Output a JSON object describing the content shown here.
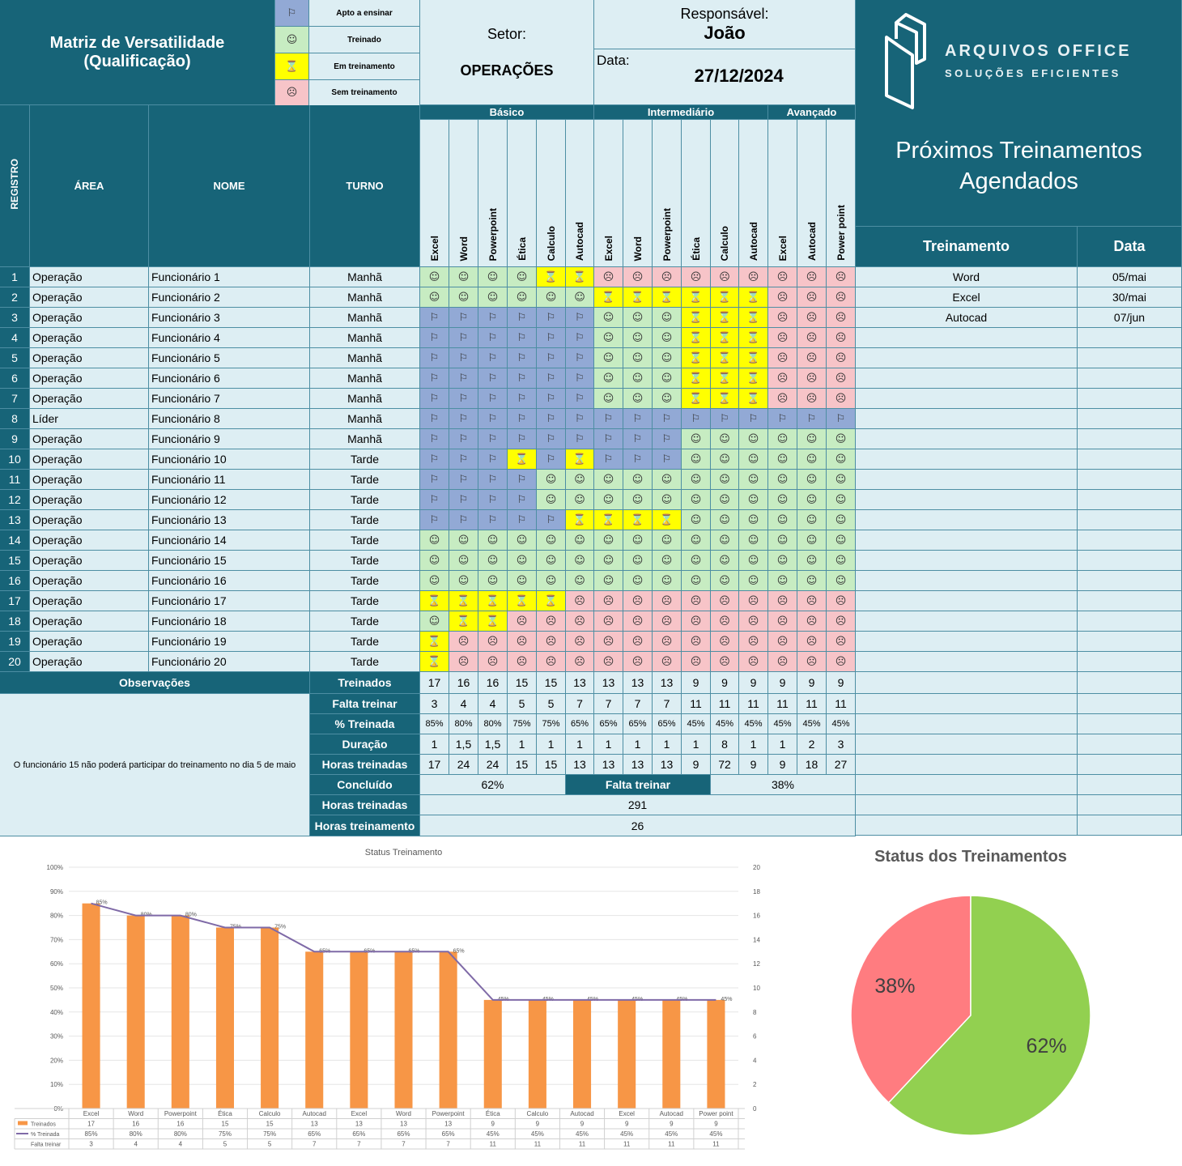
{
  "header": {
    "title1": "Matriz de Versatilidade",
    "title2": "(Qualificação)",
    "setor_label": "Setor:",
    "setor_value": "OPERAÇÕES",
    "resp_label": "Responsável:",
    "resp_value": "João",
    "data_label": "Data:",
    "data_value": "27/12/2024",
    "logo_line1": "ARQUIVOS OFFICE",
    "logo_line2": "SOLUÇÕES EFICIENTES"
  },
  "legend": [
    {
      "icon": "flag",
      "label": "Apto a ensinar"
    },
    {
      "icon": "smile",
      "label": "Treinado"
    },
    {
      "icon": "hourglass",
      "label": "Em treinamento"
    },
    {
      "icon": "frown",
      "label": "Sem treinamento"
    }
  ],
  "status_colors": {
    "flag": "#92a9d5",
    "smile": "#c7ecc2",
    "hourglass": "#ffff00",
    "frown": "#f7c4c8",
    "accent": "#176478"
  },
  "levels": [
    "Básico",
    "Intermediário",
    "Avançado"
  ],
  "col_headers": {
    "registro": "REGISTRO",
    "area": "ÁREA",
    "nome": "NOME",
    "turno": "TURNO"
  },
  "skills": [
    "Excel",
    "Word",
    "Powerpoint",
    "Ética",
    "Calculo",
    "Autocad",
    "Excel",
    "Word",
    "Powerpoint",
    "Ética",
    "Calculo",
    "Autocad",
    "Excel",
    "Autocad",
    "Power point"
  ],
  "rows": [
    {
      "reg": "1",
      "area": "Operação",
      "nome": "Funcionário 1",
      "turno": "Manhã",
      "codes": "SSSSHHFFFFFFFFF"
    },
    {
      "reg": "2",
      "area": "Operação",
      "nome": "Funcionário 2",
      "turno": "Manhã",
      "codes": "SSSSSSHHHHHHFFF"
    },
    {
      "reg": "3",
      "area": "Operação",
      "nome": "Funcionário 3",
      "turno": "Manhã",
      "codes": "AAAAAASSSHHHFFF"
    },
    {
      "reg": "4",
      "area": "Operação",
      "nome": "Funcionário 4",
      "turno": "Manhã",
      "codes": "AAAAAASSSHHHFFF"
    },
    {
      "reg": "5",
      "area": "Operação",
      "nome": "Funcionário 5",
      "turno": "Manhã",
      "codes": "AAAAAASSSHHHFFF"
    },
    {
      "reg": "6",
      "area": "Operação",
      "nome": "Funcionário 6",
      "turno": "Manhã",
      "codes": "AAAAAASSSHHHFFF"
    },
    {
      "reg": "7",
      "area": "Operação",
      "nome": "Funcionário 7",
      "turno": "Manhã",
      "codes": "AAAAAASSSHHHFFF"
    },
    {
      "reg": "8",
      "area": "Líder",
      "nome": "Funcionário 8",
      "turno": "Manhã",
      "codes": "AAAAAAAAAAAAAAA"
    },
    {
      "reg": "9",
      "area": "Operação",
      "nome": "Funcionário 9",
      "turno": "Manhã",
      "codes": "AAAAAAAAASSSSSS"
    },
    {
      "reg": "10",
      "area": "Operação",
      "nome": "Funcionário 10",
      "turno": "Tarde",
      "codes": "AAAHAHAAASSSSSS"
    },
    {
      "reg": "11",
      "area": "Operação",
      "nome": "Funcionário 11",
      "turno": "Tarde",
      "codes": "AAAASSSSSSSSSSS"
    },
    {
      "reg": "12",
      "area": "Operação",
      "nome": "Funcionário 12",
      "turno": "Tarde",
      "codes": "AAAASSSSSSSSSSS"
    },
    {
      "reg": "13",
      "area": "Operação",
      "nome": "Funcionário 13",
      "turno": "Tarde",
      "codes": "AAAAAHHHHSSSSSS"
    },
    {
      "reg": "14",
      "area": "Operação",
      "nome": "Funcionário 14",
      "turno": "Tarde",
      "codes": "SSSSSSSSSSSSSSS"
    },
    {
      "reg": "15",
      "area": "Operação",
      "nome": "Funcionário 15",
      "turno": "Tarde",
      "codes": "SSSSSSSSSSSSSSS"
    },
    {
      "reg": "16",
      "area": "Operação",
      "nome": "Funcionário 16",
      "turno": "Tarde",
      "codes": "SSSSSSSSSSSSSSS"
    },
    {
      "reg": "17",
      "area": "Operação",
      "nome": "Funcionário 17",
      "turno": "Tarde",
      "codes": "HHHHHFFFFFFFFFF"
    },
    {
      "reg": "18",
      "area": "Operação",
      "nome": "Funcionário 18",
      "turno": "Tarde",
      "codes": "SHHFFFFFFFFFFFF"
    },
    {
      "reg": "19",
      "area": "Operação",
      "nome": "Funcionário 19",
      "turno": "Tarde",
      "codes": "HFFFFFFFFFFFFFF"
    },
    {
      "reg": "20",
      "area": "Operação",
      "nome": "Funcionário 20",
      "turno": "Tarde",
      "codes": "HFFFFFFFFFFFFFF"
    }
  ],
  "stats": {
    "labels": {
      "observacoes": "Observações",
      "treinados": "Treinados",
      "falta": "Falta treinar",
      "pct": "% Treinada",
      "duracao": "Duração",
      "horas": "Horas treinadas",
      "concluido": "Concluído",
      "falta2": "Falta treinar",
      "horas_total": "Horas treinadas",
      "horas_treinamento": "Horas treinamento"
    },
    "treinados": [
      "17",
      "16",
      "16",
      "15",
      "15",
      "13",
      "13",
      "13",
      "13",
      "9",
      "9",
      "9",
      "9",
      "9",
      "9"
    ],
    "falta": [
      "3",
      "4",
      "4",
      "5",
      "5",
      "7",
      "7",
      "7",
      "7",
      "11",
      "11",
      "11",
      "11",
      "11",
      "11"
    ],
    "pct": [
      "85%",
      "80%",
      "80%",
      "75%",
      "75%",
      "65%",
      "65%",
      "65%",
      "65%",
      "45%",
      "45%",
      "45%",
      "45%",
      "45%",
      "45%"
    ],
    "duracao": [
      "1",
      "1,5",
      "1,5",
      "1",
      "1",
      "1",
      "1",
      "1",
      "1",
      "1",
      "8",
      "1",
      "1",
      "2",
      "3"
    ],
    "horas": [
      "17",
      "24",
      "24",
      "15",
      "15",
      "13",
      "13",
      "13",
      "13",
      "9",
      "72",
      "9",
      "9",
      "18",
      "27"
    ],
    "concluido_value": "62%",
    "falta_value": "38%",
    "horas_total_value": "291",
    "horas_treinamento_value": "26",
    "observacao_text": "O funcionário 15 não poderá participar do treinamento no dia 5 de maio"
  },
  "agenda": {
    "title1": "Próximos Treinamentos",
    "title2": "Agendados",
    "col_treinamento": "Treinamento",
    "col_data": "Data",
    "items": [
      {
        "treinamento": "Word",
        "data": "05/mai"
      },
      {
        "treinamento": "Excel",
        "data": "30/mai"
      },
      {
        "treinamento": "Autocad",
        "data": "07/jun"
      }
    ]
  },
  "chart_data": [
    {
      "type": "bar",
      "title": "Status Treinamento",
      "categories": [
        "Excel",
        "Word",
        "Powerpoint",
        "Ética",
        "Calculo",
        "Autocad",
        "Excel",
        "Word",
        "Powerpoint",
        "Ética",
        "Calculo",
        "Autocad",
        "Excel",
        "Autocad",
        "Power point"
      ],
      "series": [
        {
          "name": "Treinados",
          "axis": "right",
          "values": [
            17,
            16,
            16,
            15,
            15,
            13,
            13,
            13,
            13,
            9,
            9,
            9,
            9,
            9,
            9
          ],
          "color": "#f79646"
        },
        {
          "name": "% Treinada",
          "axis": "left",
          "type": "line",
          "values": [
            85,
            80,
            80,
            75,
            75,
            65,
            65,
            65,
            65,
            45,
            45,
            45,
            45,
            45,
            45
          ],
          "color": "#7f6aa7"
        },
        {
          "name": "Falta treinar",
          "values": [
            3,
            4,
            4,
            5,
            5,
            7,
            7,
            7,
            7,
            11,
            11,
            11,
            11,
            11,
            11
          ]
        }
      ],
      "y_left_ticks": [
        "0%",
        "10%",
        "20%",
        "30%",
        "40%",
        "50%",
        "60%",
        "70%",
        "80%",
        "90%",
        "100%"
      ],
      "y_right_ticks": [
        "0",
        "2",
        "4",
        "6",
        "8",
        "10",
        "12",
        "14",
        "16",
        "18",
        "20"
      ],
      "ylim_left": [
        0,
        100
      ],
      "ylim_right": [
        0,
        20
      ],
      "data_labels": [
        "85%",
        "80%",
        "80%",
        "75%",
        "75%",
        "65%",
        "65%",
        "65%",
        "65%",
        "45%",
        "45%",
        "45%",
        "45%",
        "45%",
        "45%"
      ]
    },
    {
      "type": "pie",
      "title": "Status dos Treinamentos",
      "slices": [
        {
          "label": "38%",
          "value": 38,
          "color": "#ff7c80"
        },
        {
          "label": "62%",
          "value": 62,
          "color": "#92d050"
        }
      ]
    }
  ]
}
